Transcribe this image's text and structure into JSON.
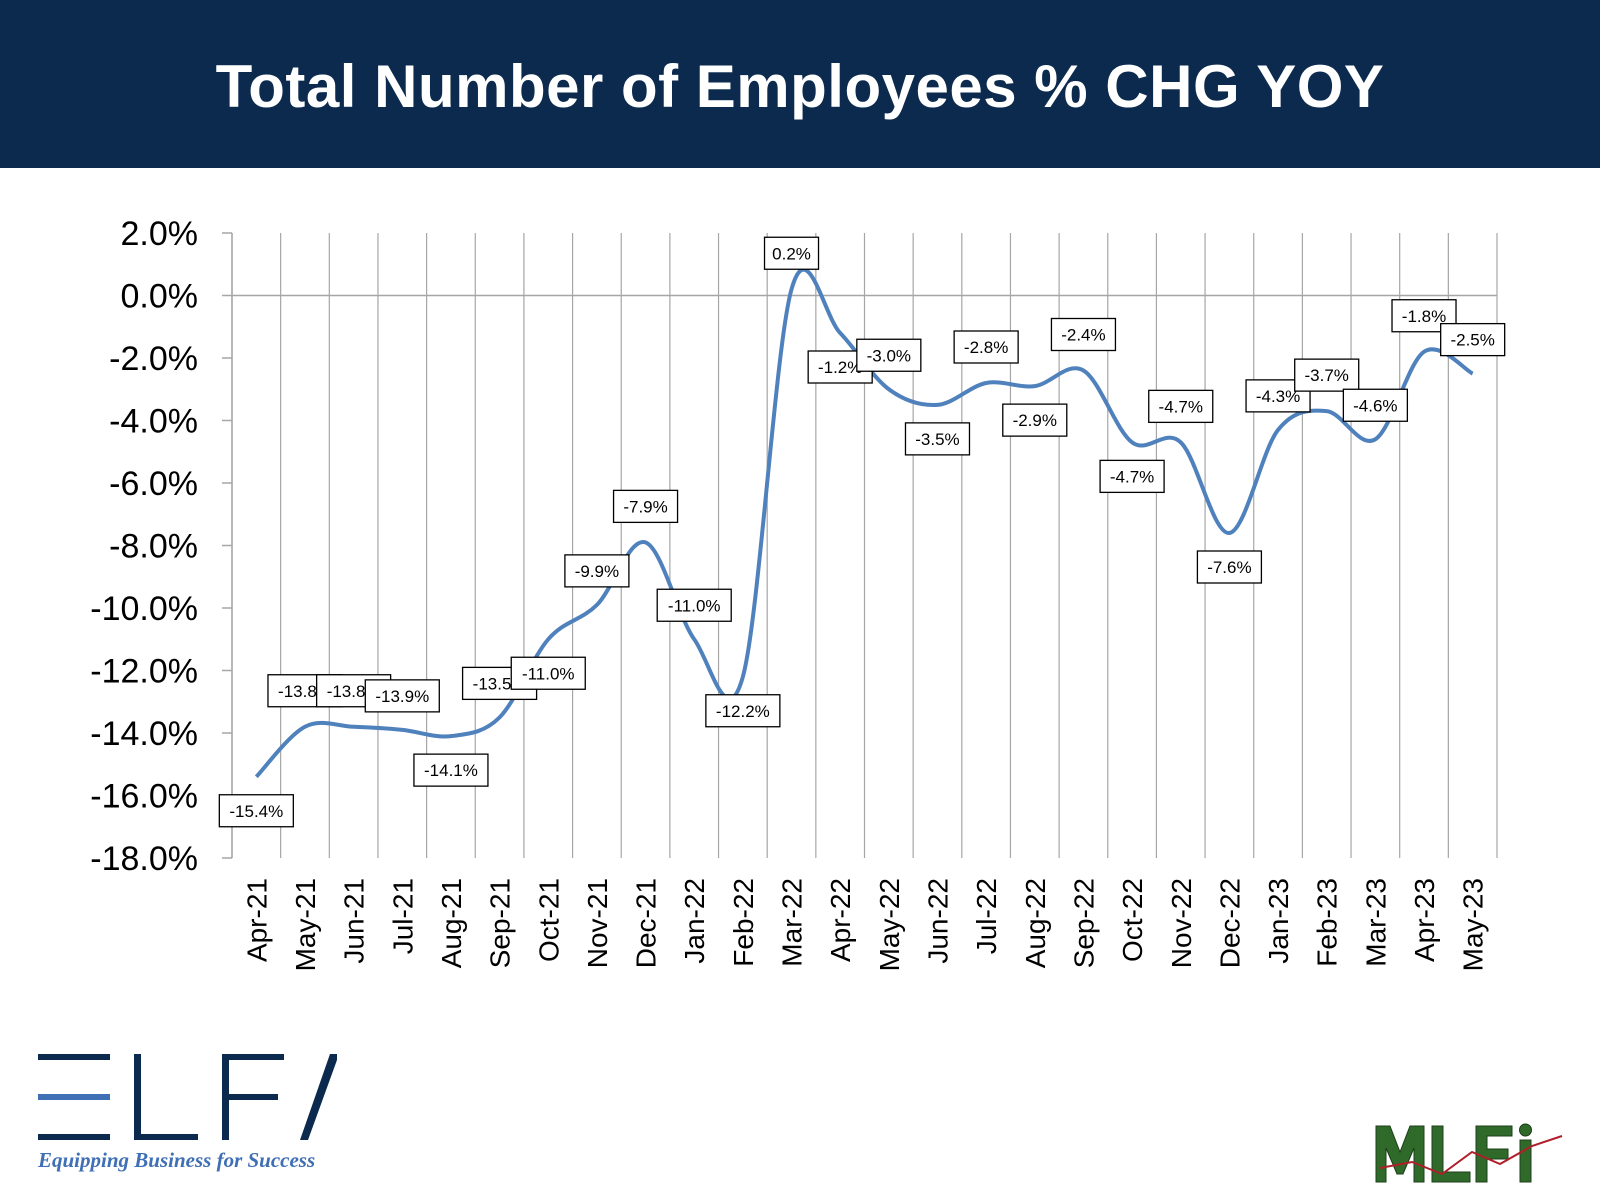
{
  "header": {
    "title": "Total Number of Employees % CHG YOY"
  },
  "colors": {
    "header_bg": "#0b2a4e",
    "series_line": "#4f81bd",
    "grid": "#a6a6a6",
    "elfa_navy": "#0b2a4e",
    "elfa_blue": "#3f6fb4",
    "mlfi_green": "#2f6a2a"
  },
  "logos": {
    "elfa_text": "ELFA",
    "elfa_tagline": "Equipping Business for Success",
    "mlfi_text": "MLFI"
  },
  "chart_data": {
    "type": "line",
    "title": "Total Number of Employees % CHG YOY",
    "xlabel": "",
    "ylabel": "",
    "ylim": [
      -18.0,
      2.0
    ],
    "ytick_step": 2.0,
    "ytick_labels": [
      "2.0%",
      "0.0%",
      "-2.0%",
      "-4.0%",
      "-6.0%",
      "-8.0%",
      "-10.0%",
      "-12.0%",
      "-14.0%",
      "-16.0%",
      "-18.0%"
    ],
    "grid": {
      "vertical": true,
      "horizontal": false
    },
    "smooth": true,
    "categories": [
      "Apr-21",
      "May-21",
      "Jun-21",
      "Jul-21",
      "Aug-21",
      "Sep-21",
      "Oct-21",
      "Nov-21",
      "Dec-21",
      "Jan-22",
      "Feb-22",
      "Mar-22",
      "Apr-22",
      "May-22",
      "Jun-22",
      "Jul-22",
      "Aug-22",
      "Sep-22",
      "Oct-22",
      "Nov-22",
      "Dec-22",
      "Jan-23",
      "Feb-23",
      "Mar-23",
      "Apr-23",
      "May-23"
    ],
    "series": [
      {
        "values": [
          -15.4,
          -13.8,
          -13.8,
          -13.9,
          -14.1,
          -13.5,
          -11.0,
          -9.9,
          -7.9,
          -11.0,
          -12.2,
          0.2,
          -1.2,
          -3.0,
          -3.5,
          -2.8,
          -2.9,
          -2.4,
          -4.7,
          -4.7,
          -7.6,
          -4.3,
          -3.7,
          -4.6,
          -1.8,
          -2.5
        ],
        "data_labels": [
          "-15.4%",
          "-13.8%",
          "-13.8%",
          "-13.9%",
          "-14.1%",
          "-13.5%",
          "-11.0%",
          "-9.9%",
          "-7.9%",
          "-11.0%",
          "-12.2%",
          "0.2%",
          "-1.2%",
          "-3.0%",
          "-3.5%",
          "-2.8%",
          "-2.9%",
          "-2.4%",
          "-4.7%",
          "-4.7%",
          "-7.6%",
          "-4.3%",
          "-3.7%",
          "-4.6%",
          "-1.8%",
          "-2.5%"
        ]
      }
    ]
  }
}
